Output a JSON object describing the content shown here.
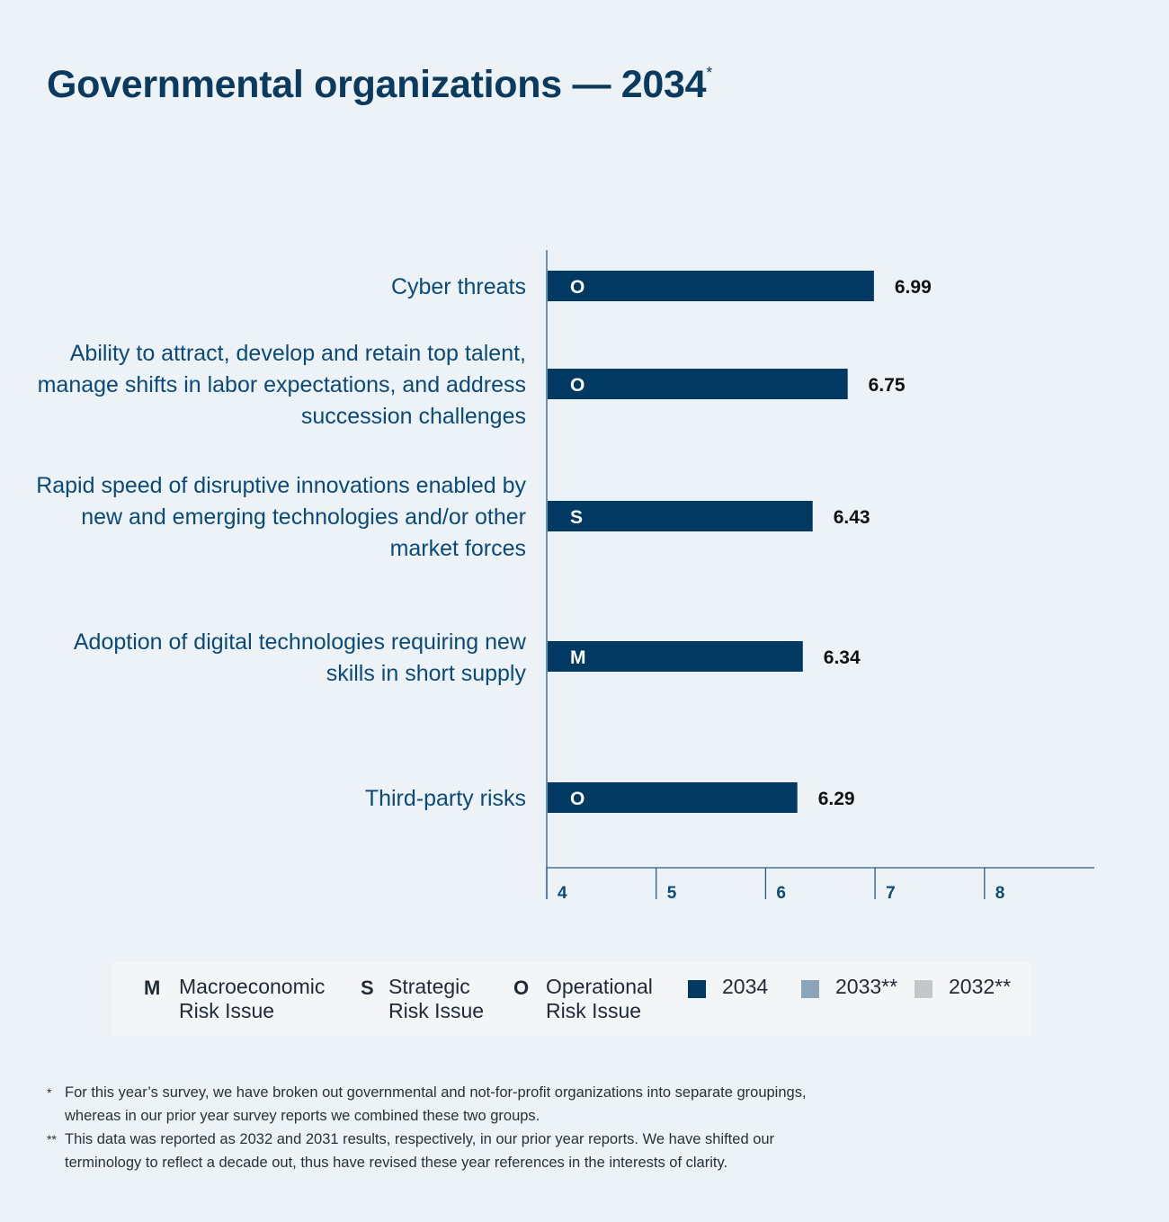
{
  "title": "Governmental organizations — 2034",
  "title_mark": "*",
  "chart_data": {
    "type": "bar",
    "orientation": "horizontal",
    "categories": [
      "Cyber threats",
      "Ability to attract, develop and retain top talent, manage shifts in labor expectations, and address succession challenges",
      "Rapid speed of disruptive innovations enabled by new and emerging technologies and/or other market forces",
      "Adoption of digital technologies requiring new skills in short supply",
      "Third-party risks"
    ],
    "series": [
      {
        "name": "2034",
        "values": [
          6.99,
          6.75,
          6.43,
          6.34,
          6.29
        ],
        "color": "#003a63"
      }
    ],
    "bar_letters": [
      "O",
      "O",
      "S",
      "M",
      "O"
    ],
    "value_labels": [
      "6.99",
      "6.75",
      "6.43",
      "6.34",
      "6.29"
    ],
    "xlim": [
      4,
      9
    ],
    "x_ticks": [
      "4",
      "5",
      "6",
      "7",
      "8"
    ],
    "grid": false
  },
  "legend": {
    "macro": {
      "letter": "M",
      "line1": "Macroeconomic",
      "line2": "Risk Issue"
    },
    "strategic": {
      "letter": "S",
      "line1": "Strategic",
      "line2": "Risk Issue"
    },
    "operational": {
      "letter": "O",
      "line1": "Operational",
      "line2": "Risk Issue"
    },
    "y2034": {
      "label": "2034",
      "color": "#003a63"
    },
    "y2033": {
      "label": "2033**",
      "color": "#8aa5ba"
    },
    "y2032": {
      "label": "2032**",
      "color": "#c4c6c9"
    }
  },
  "footnotes": [
    {
      "mark": "*",
      "text": "For this year’s survey, we have broken out governmental and not-for-profit organizations into separate groupings, whereas in our prior year survey reports we combined these two groups."
    },
    {
      "mark": "**",
      "text": "This data was reported as 2032 and 2031 results, respectively, in our prior year reports. We have shifted our terminology to reflect a decade out, thus have revised these year references in the interests of clarity."
    }
  ]
}
